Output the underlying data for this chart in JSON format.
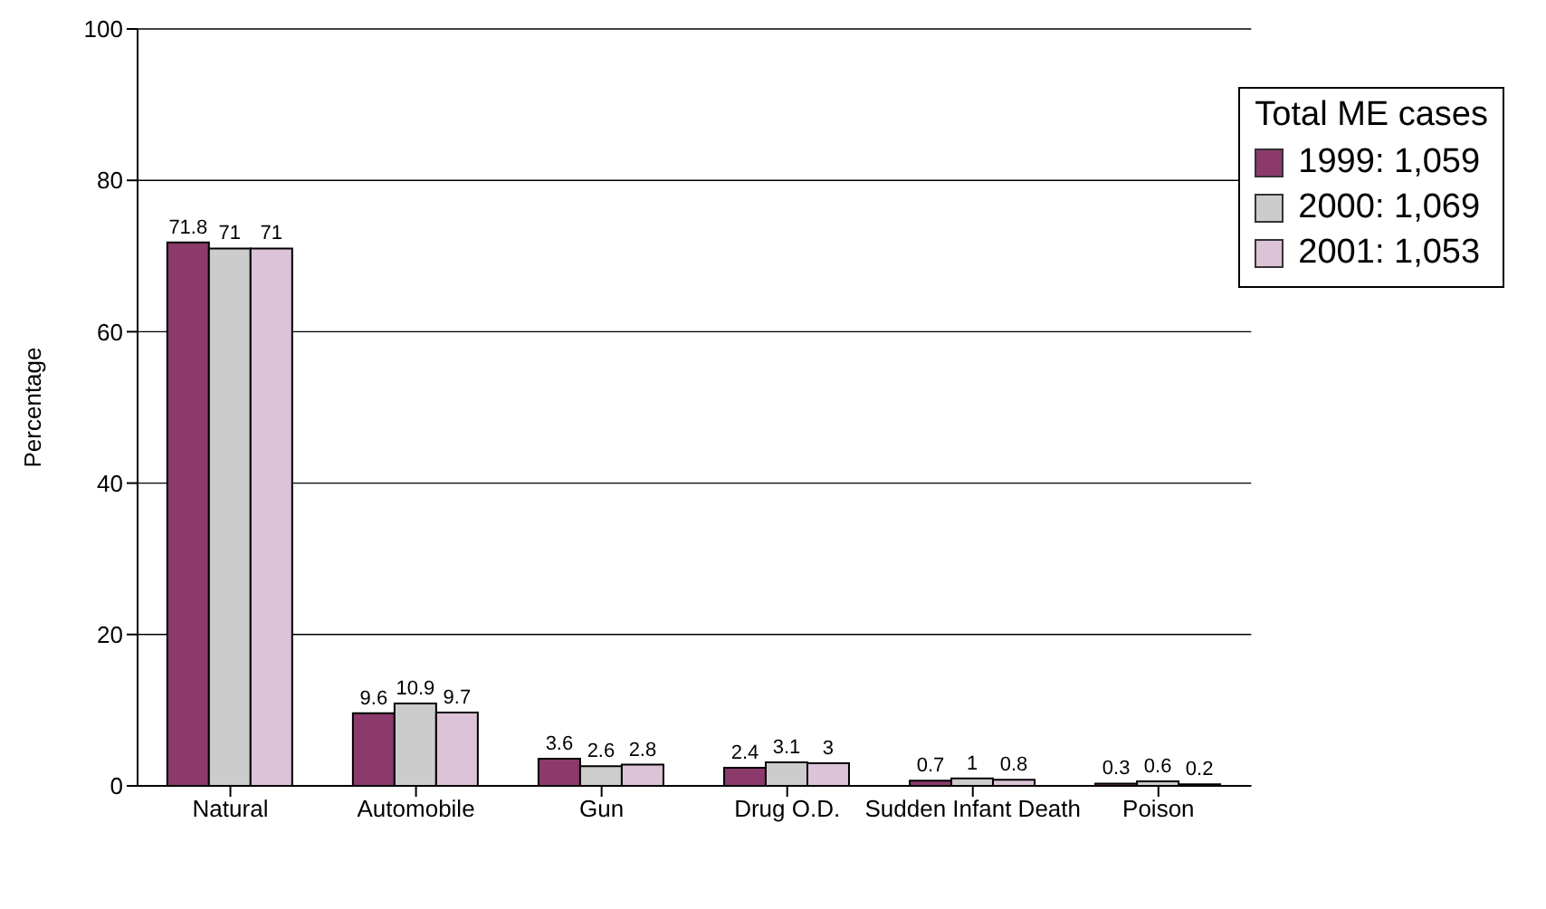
{
  "chart_data": {
    "type": "bar",
    "ylabel": "Percentage",
    "legend_title": "Total ME cases",
    "categories": [
      "Natural",
      "Automobile",
      "Gun",
      "Drug O.D.",
      "Sudden Infant Death",
      "Poison"
    ],
    "series": [
      {
        "name": "1999: 1,059",
        "color": "#8b3a6b",
        "values": [
          71.8,
          9.6,
          3.6,
          2.4,
          0.7,
          0.3
        ]
      },
      {
        "name": "2000: 1,069",
        "color": "#cccccc",
        "values": [
          71,
          10.9,
          2.6,
          3.1,
          1,
          0.6
        ]
      },
      {
        "name": "2001: 1,053",
        "color": "#dcc3d8",
        "values": [
          71,
          9.7,
          2.8,
          3,
          0.8,
          0.2
        ]
      }
    ],
    "ylim": [
      0,
      100
    ],
    "yticks": [
      0,
      20,
      40,
      60,
      80,
      100
    ],
    "grid": "y",
    "legend": "top right",
    "data_labels": true
  }
}
